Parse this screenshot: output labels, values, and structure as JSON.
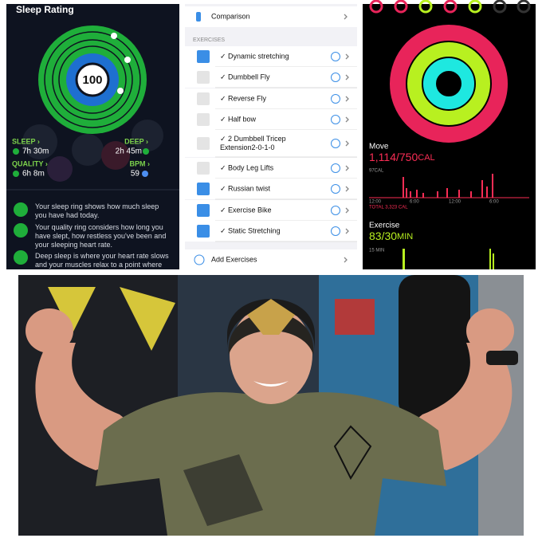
{
  "sleep_panel": {
    "title": "Sleep Rating",
    "score": "100",
    "stats": [
      {
        "label": "SLEEP ›",
        "value": "7h 30m"
      },
      {
        "label": "DEEP ›",
        "value": "2h 45m"
      },
      {
        "label": "QUALITY ›",
        "value": "6h 8m"
      },
      {
        "label": "BPM ›",
        "value": "59"
      }
    ],
    "notes": [
      "Your sleep ring shows how much sleep you have had today.",
      "Your quality ring considers how long you have slept, how restless you've been and your sleeping heart rate.",
      "Deep sleep is where your heart rate slows and your muscles relax to a point where you"
    ]
  },
  "workout_panel": {
    "comparison": "Comparison",
    "section": "EXERCISES",
    "exercises": [
      "✓ Dynamic stretching",
      "✓ Dumbbell Fly",
      "✓ Reverse Fly",
      "✓ Half bow",
      "✓ 2 Dumbbell Tricep Extension2-0-1-0",
      "✓ Body Leg Lifts",
      "✓ Russian twist",
      "✓ Exercise Bike",
      "✓ Static Stretching"
    ],
    "add": "Add Exercises"
  },
  "activity_panel": {
    "move": {
      "label": "Move",
      "value": "1,114/750",
      "unit": "CAL",
      "chart_max": "97CAL",
      "times": [
        "12:00",
        "6:00",
        "12:00",
        "6:00"
      ],
      "total": "TOTAL 3,323 CAL"
    },
    "exercise": {
      "label": "Exercise",
      "value": "83/30",
      "unit": "MIN",
      "chart_max": "15 MIN"
    }
  }
}
